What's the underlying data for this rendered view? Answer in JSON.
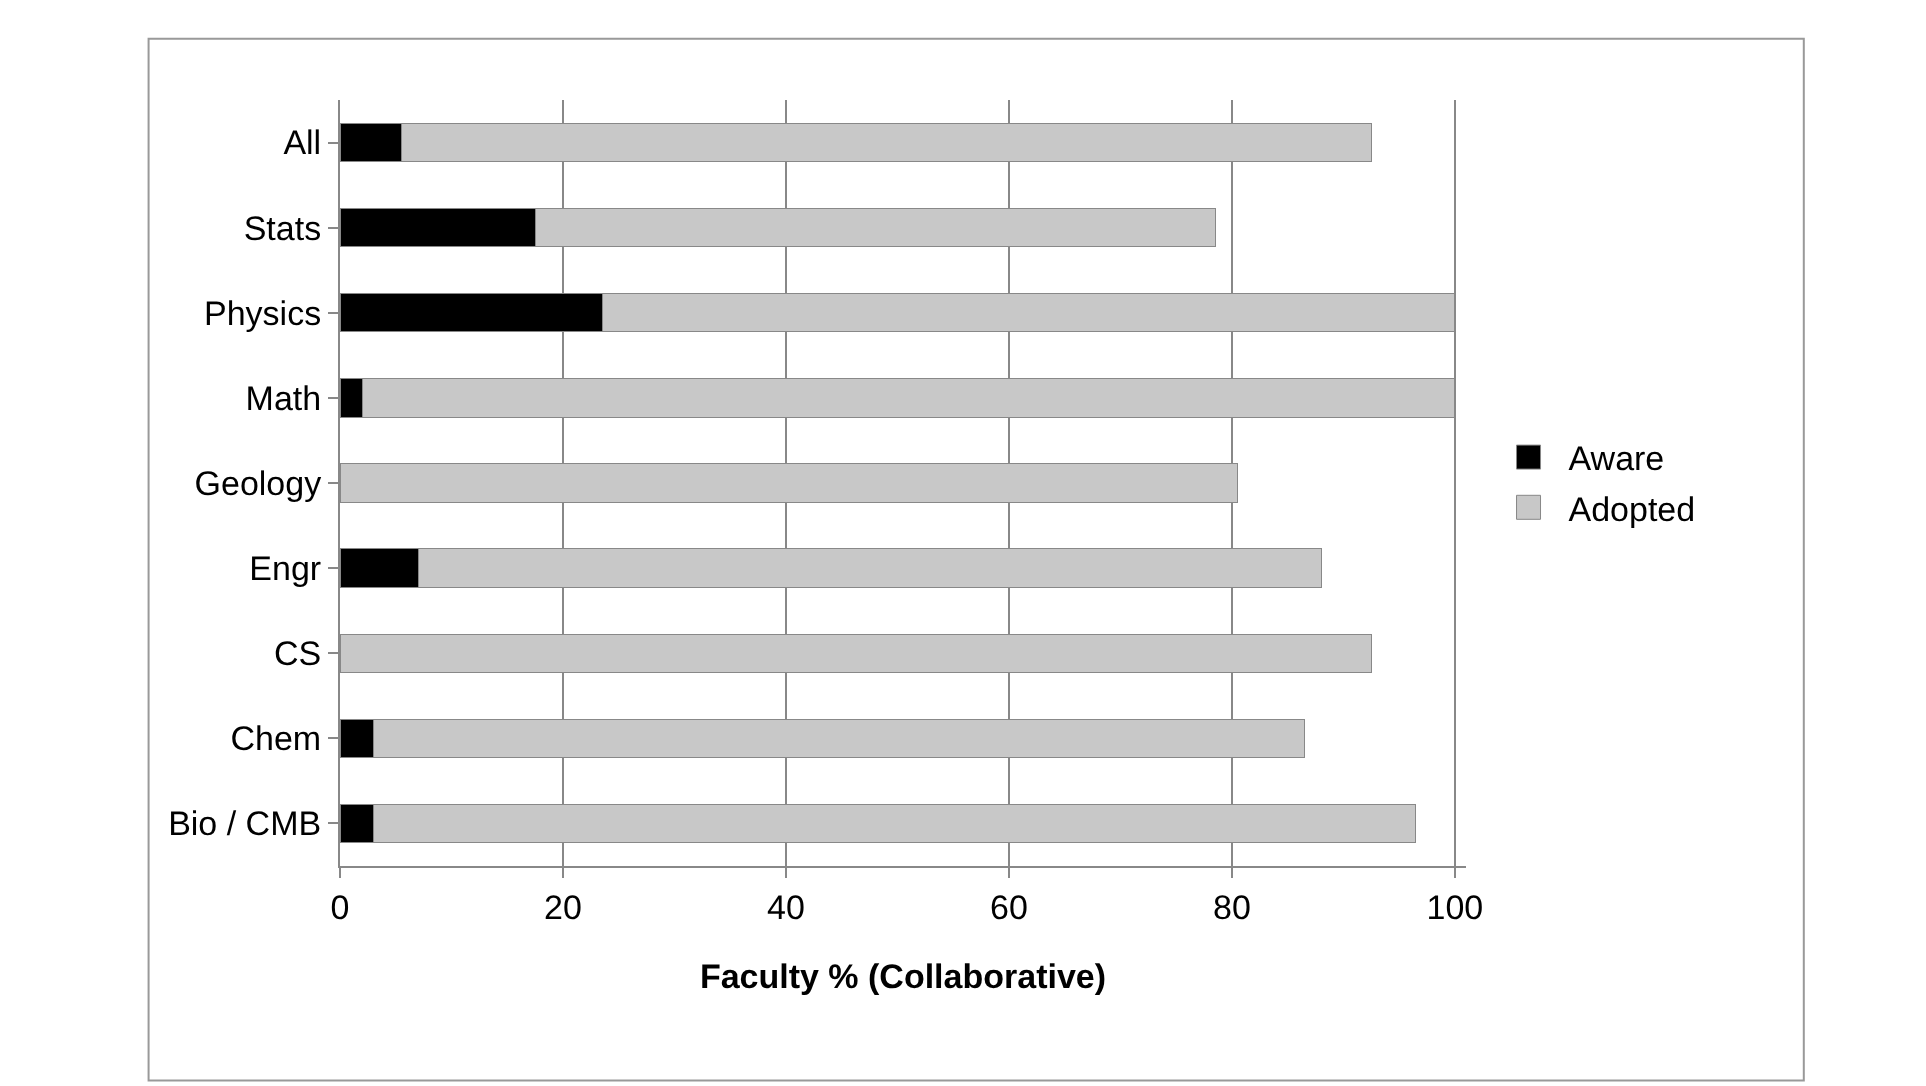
{
  "chart_data": {
    "type": "bar",
    "orientation": "horizontal",
    "stacked": true,
    "xlabel": "Faculty % (Collaborative)",
    "categories": [
      "All",
      "Stats",
      "Physics",
      "Math",
      "Geology",
      "Engr",
      "CS",
      "Chem",
      "Bio / CMB"
    ],
    "series": [
      {
        "name": "Aware",
        "color": "#000000",
        "values": [
          5.5,
          17.5,
          23.5,
          2,
          0,
          7,
          0,
          3,
          3
        ]
      },
      {
        "name": "Adopted",
        "color": "#c8c8c8",
        "values": [
          87,
          61,
          76.5,
          98,
          80.5,
          81,
          92.5,
          83.5,
          93.5
        ]
      }
    ],
    "xlim": [
      0,
      101
    ],
    "xticks": [
      0,
      20,
      40,
      60,
      80,
      100
    ],
    "grid": "x",
    "legend": "right"
  }
}
